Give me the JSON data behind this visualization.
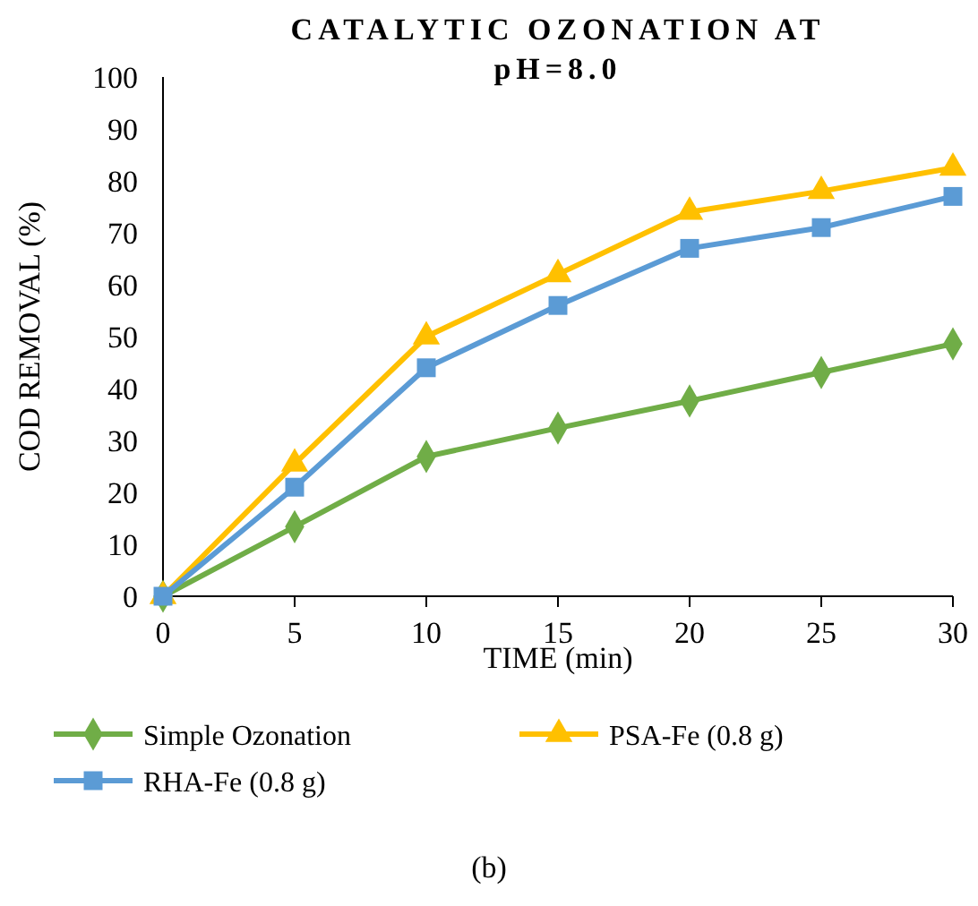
{
  "chart_data": {
    "type": "line",
    "title": "CATALYTIC OZONATION AT pH=8.0",
    "xlabel": "TIME (min)",
    "ylabel": "COD REMOVAL (%)",
    "x": [
      0,
      5,
      10,
      15,
      20,
      25,
      30
    ],
    "series": [
      {
        "name": "Simple Ozonation",
        "color": "#70ad47",
        "marker": "diamond",
        "values": [
          0,
          13.4,
          26.9,
          32.4,
          37.6,
          43.1,
          48.6
        ]
      },
      {
        "name": "PSA-Fe (0.8 g)",
        "color": "#ffc000",
        "marker": "triangle",
        "values": [
          0,
          25.5,
          50,
          62,
          74,
          78,
          82.5
        ]
      },
      {
        "name": "RHA-Fe (0.8 g)",
        "color": "#5b9bd5",
        "marker": "square",
        "values": [
          0,
          21,
          44,
          56,
          67,
          71,
          77
        ]
      }
    ],
    "xlim": [
      0,
      30
    ],
    "xticks": [
      0,
      5,
      10,
      15,
      20,
      25,
      30
    ],
    "ylim": [
      0,
      100
    ],
    "yticks": [
      0,
      10,
      20,
      30,
      40,
      50,
      60,
      70,
      80,
      90,
      100
    ],
    "grid": false,
    "legend": "bottom",
    "line_style": "solid",
    "annotations": [
      "(b)"
    ]
  }
}
